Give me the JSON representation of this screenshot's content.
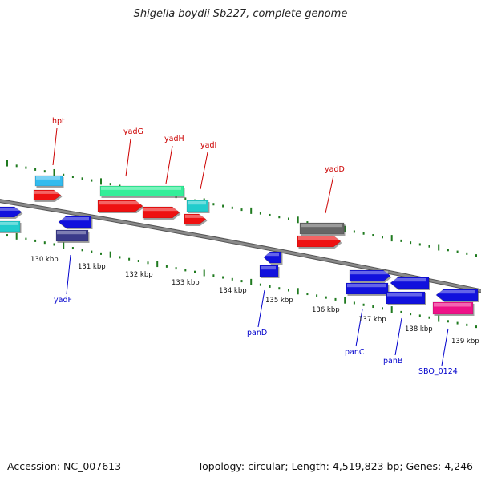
{
  "title": "Shigella boydii Sb227, complete genome",
  "footer": {
    "accession": "Accession: NC_007613",
    "summary": "Topology: circular; Length: 4,519,823 bp; Genes: 4,246"
  },
  "colors": {
    "backbone": "#8a8a8a",
    "tick_marks": "#1f7a1f",
    "label_top": "#cc0000",
    "label_bottom": "#0000cc",
    "gene_red": "#ee1111",
    "gene_blue": "#1111dd",
    "gene_cyan": "#33bbee",
    "gene_teal": "#22cccc",
    "gene_green": "#33ee99",
    "gene_gray": "#666666",
    "gene_navy": "#3a3a8a",
    "gene_pink": "#ee1188"
  },
  "ruler": {
    "labels": [
      "130 kbp",
      "131 kbp",
      "132 kbp",
      "133 kbp",
      "134 kbp",
      "135 kbp",
      "136 kbp",
      "137 kbp",
      "138 kbp",
      "139 kbp"
    ]
  },
  "genes_top": [
    {
      "label": "hpt"
    },
    {
      "label": "yadG"
    },
    {
      "label": "yadH"
    },
    {
      "label": "yadI"
    },
    {
      "label": "yadD"
    }
  ],
  "genes_bottom": [
    {
      "label": "yadF"
    },
    {
      "label": "panD"
    },
    {
      "label": "panC"
    },
    {
      "label": "panB"
    },
    {
      "label": "SBO_0124"
    }
  ]
}
